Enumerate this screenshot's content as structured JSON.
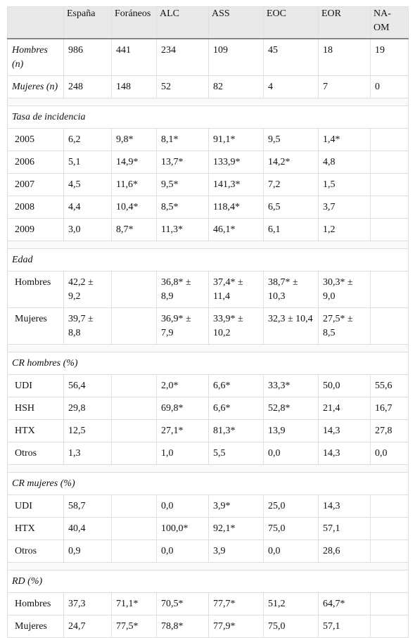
{
  "table": {
    "columns": [
      "España",
      "Foráneos",
      "ALC",
      "ASS",
      "EOC",
      "EOR",
      "NA-OM"
    ],
    "counts": [
      {
        "label": "Hombres (n)",
        "cells": [
          986,
          441,
          234,
          109,
          45,
          18,
          19
        ]
      },
      {
        "label": "Mujeres (n)",
        "cells": [
          248,
          148,
          52,
          82,
          4,
          7,
          0
        ]
      }
    ],
    "sections": [
      {
        "title": "Tasa de incidencia",
        "rows": [
          {
            "label": "2005",
            "cells": [
              "6,2",
              "9,8*",
              "8,1*",
              "91,1*",
              "9,5",
              "1,4*",
              null
            ]
          },
          {
            "label": "2006",
            "cells": [
              "5,1",
              "14,9*",
              "13,7*",
              "133,9*",
              "14,2*",
              "4,8",
              null
            ]
          },
          {
            "label": "2007",
            "cells": [
              "4,5",
              "11,6*",
              "9,5*",
              "141,3*",
              "7,2",
              "1,5",
              null
            ]
          },
          {
            "label": "2008",
            "cells": [
              "4,4",
              "10,4*",
              "8,5*",
              "118,4*",
              "6,5",
              "3,7",
              null
            ]
          },
          {
            "label": "2009",
            "cells": [
              "3,0",
              "8,7*",
              "11,3*",
              "46,1*",
              "6,1",
              "1,2",
              null
            ]
          }
        ]
      },
      {
        "title": "Edad",
        "rows": [
          {
            "label": "Hombres",
            "cells": [
              "42,2 ± 9,2",
              null,
              "36,8* ± 8,9",
              "37,4* ± 11,4",
              "38,7* ± 10,3",
              "30,3* ± 9,0",
              null
            ]
          },
          {
            "label": "Mujeres",
            "cells": [
              "39,7 ± 8,8",
              null,
              "36,9* ± 7,9",
              "33,9* ± 10,2",
              "32,3 ± 10,4",
              "27,5* ± 8,5",
              null
            ]
          }
        ]
      },
      {
        "title": "CR hombres (%)",
        "rows": [
          {
            "label": "UDI",
            "cells": [
              "56,4",
              null,
              "2,0*",
              "6,6*",
              "33,3*",
              "50,0",
              "55,6"
            ]
          },
          {
            "label": "HSH",
            "cells": [
              "29,8",
              null,
              "69,8*",
              "6,6*",
              "52,8*",
              "21,4",
              "16,7"
            ]
          },
          {
            "label": "HTX",
            "cells": [
              "12,5",
              null,
              "27,1*",
              "81,3*",
              "13,9",
              "14,3",
              "27,8"
            ]
          },
          {
            "label": "Otros",
            "cells": [
              "1,3",
              null,
              "1,0",
              "5,5",
              "0,0",
              "14,3",
              "0,0"
            ]
          }
        ]
      },
      {
        "title": "CR mujeres (%)",
        "rows": [
          {
            "label": "UDI",
            "cells": [
              "58,7",
              null,
              "0,0",
              "3,9*",
              "25,0",
              "14,3",
              null
            ]
          },
          {
            "label": "HTX",
            "cells": [
              "40,4",
              null,
              "100,0*",
              "92,1*",
              "75,0",
              "57,1",
              null
            ]
          },
          {
            "label": "Otros",
            "cells": [
              "0,9",
              null,
              "0,0",
              "3,9",
              "0,0",
              "28,6",
              null
            ]
          }
        ]
      },
      {
        "title": "RD (%)",
        "rows": [
          {
            "label": "Hombres",
            "cells": [
              "37,3",
              "71,1*",
              "70,5*",
              "77,7*",
              "51,2",
              "64,7*",
              null
            ]
          },
          {
            "label": "Mujeres",
            "cells": [
              "24,7",
              "77,5*",
              "78,8*",
              "77,9*",
              "75,0",
              "57,1",
              null
            ]
          }
        ]
      }
    ]
  }
}
